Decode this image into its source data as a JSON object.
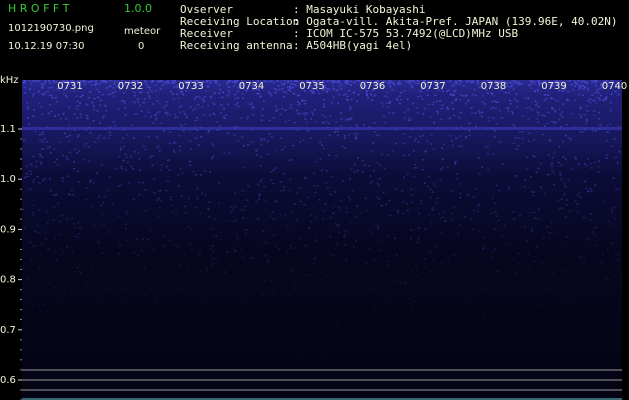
{
  "header": {
    "app_name": "H R O F F T",
    "version": "1.0.0",
    "file_name": "1012190730.png",
    "counter_label": "meteor",
    "timestamp": "10.12.19 07:30",
    "counter_value": "0",
    "fields": [
      {
        "label": "Ovserver",
        "value": ": Masayuki Kobayashi"
      },
      {
        "label": "Receiving Location",
        "value": ": Ogata-vill. Akita-Pref. JAPAN (139.96E, 40.02N)"
      },
      {
        "label": "Receiver",
        "value": ": ICOM IC-575 53.7492(@LCD)MHz USB"
      },
      {
        "label": "Receiving antenna",
        "value": ": A504HB(yagi 4el)"
      }
    ]
  },
  "y_axis": {
    "unit": "kHz",
    "labels": [
      "1.1",
      "1.0",
      "0.9",
      "0.8",
      "0.7",
      "0.6"
    ]
  },
  "x_axis": {
    "labels": [
      "0731",
      "0732",
      "0733",
      "0734",
      "0735",
      "0736",
      "0737",
      "0738",
      "0739",
      "0740"
    ]
  }
}
